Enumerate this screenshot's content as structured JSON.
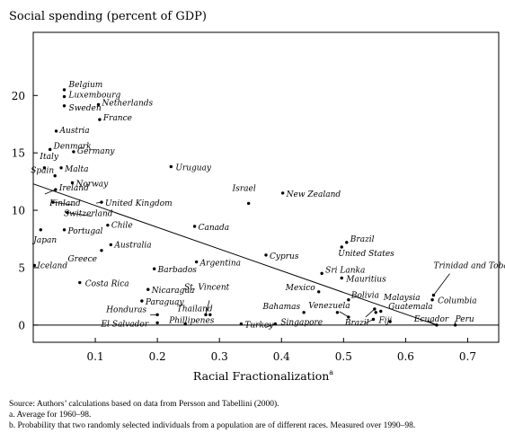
{
  "chart_data": {
    "type": "scatter",
    "title": "Social spending (percent of GDP)",
    "xlabel": "Racial Fractionalization",
    "xlabel_superscript": "a",
    "xlim": [
      0,
      0.75
    ],
    "ylim": [
      -1.5,
      25.5
    ],
    "xticks": [
      0.1,
      0.2,
      0.3,
      0.4,
      0.5,
      0.6,
      0.7
    ],
    "xtick_labels": [
      "0.1",
      "0.2",
      "0.3",
      "0.4",
      "0.5",
      "0.6",
      "0.7"
    ],
    "yticks": [
      0,
      5,
      10,
      15,
      20
    ],
    "ytick_labels": [
      "0",
      "5",
      "10",
      "15",
      "20"
    ],
    "grid": false,
    "font_style": "italic",
    "fit_line": {
      "x": [
        0,
        0.65
      ],
      "y": [
        12.3,
        0.0
      ]
    },
    "points": [
      {
        "label": "Belgium",
        "x": 0.05,
        "y": 20.5
      },
      {
        "label": "Luxembourg",
        "x": 0.05,
        "y": 19.9
      },
      {
        "label": "Sweden",
        "x": 0.05,
        "y": 19.1
      },
      {
        "label": "Netherlands",
        "x": 0.105,
        "y": 19.2
      },
      {
        "label": "France",
        "x": 0.107,
        "y": 17.9
      },
      {
        "label": "Austria",
        "x": 0.037,
        "y": 16.9
      },
      {
        "label": "Denmark",
        "x": 0.027,
        "y": 15.3
      },
      {
        "label": "Germany",
        "x": 0.065,
        "y": 15.1
      },
      {
        "label": "Italy",
        "x": 0.018,
        "y": 13.7
      },
      {
        "label": "Malta",
        "x": 0.045,
        "y": 13.7
      },
      {
        "label": "Spain",
        "x": 0.035,
        "y": 13.0
      },
      {
        "label": "Norway",
        "x": 0.063,
        "y": 12.4
      },
      {
        "label": "Ireland",
        "x": 0.036,
        "y": 11.8
      },
      {
        "label": "Finland",
        "x": 0.032,
        "y": 10.7
      },
      {
        "label": "United Kingdom",
        "x": 0.11,
        "y": 10.7
      },
      {
        "label": "Switzerland",
        "x": 0.055,
        "y": 9.8
      },
      {
        "label": "Japan",
        "x": 0.012,
        "y": 8.3
      },
      {
        "label": "Portugal",
        "x": 0.05,
        "y": 8.3
      },
      {
        "label": "Chile",
        "x": 0.12,
        "y": 8.7
      },
      {
        "label": "Australia",
        "x": 0.125,
        "y": 7.0
      },
      {
        "label": "Greece",
        "x": 0.11,
        "y": 6.5
      },
      {
        "label": "Iceland",
        "x": 0.002,
        "y": 5.2
      },
      {
        "label": "Costa Rica",
        "x": 0.075,
        "y": 3.7
      },
      {
        "label": "Uruguay",
        "x": 0.222,
        "y": 13.8
      },
      {
        "label": "Israel",
        "x": 0.347,
        "y": 10.6
      },
      {
        "label": "New Zealand",
        "x": 0.402,
        "y": 11.5
      },
      {
        "label": "Canada",
        "x": 0.26,
        "y": 8.6
      },
      {
        "label": "Argentina",
        "x": 0.263,
        "y": 5.5
      },
      {
        "label": "Barbados",
        "x": 0.195,
        "y": 4.9
      },
      {
        "label": "Cyprus",
        "x": 0.375,
        "y": 6.1
      },
      {
        "label": "Brazil",
        "x": 0.505,
        "y": 7.2
      },
      {
        "label": "United States",
        "x": 0.497,
        "y": 6.8
      },
      {
        "label": "Sri Lanka",
        "x": 0.465,
        "y": 4.5
      },
      {
        "label": "Mauritius",
        "x": 0.497,
        "y": 4.1
      },
      {
        "label": "Mexico",
        "x": 0.46,
        "y": 2.9
      },
      {
        "label": "Bolivia",
        "x": 0.508,
        "y": 2.2
      },
      {
        "label": "Malaysia",
        "x": 0.55,
        "y": 1.4
      },
      {
        "label": "Guatemala",
        "x": 0.552,
        "y": 1.1
      },
      {
        "label": "Fiji",
        "x": 0.548,
        "y": 0.5
      },
      {
        "label": "Venezuela",
        "x": 0.49,
        "y": 1.1
      },
      {
        "label": "Bahamas",
        "x": 0.436,
        "y": 1.1
      },
      {
        "label": "Brazil",
        "x": 0.508,
        "y": 0.7
      },
      {
        "label": "Singapore",
        "x": 0.39,
        "y": 0.1
      },
      {
        "label": "Turkey",
        "x": 0.335,
        "y": 0.1
      },
      {
        "label": "Thailand",
        "x": 0.285,
        "y": 0.9
      },
      {
        "label": "St. Vincent",
        "x": 0.278,
        "y": 0.9
      },
      {
        "label": "Nicaragua",
        "x": 0.185,
        "y": 3.1
      },
      {
        "label": "Paraguay",
        "x": 0.175,
        "y": 2.1
      },
      {
        "label": "Honduras",
        "x": 0.2,
        "y": 0.9
      },
      {
        "label": "El Salvador",
        "x": 0.2,
        "y": 0.2
      },
      {
        "label": "Phillipenes",
        "x": 0.245,
        "y": 0.1
      },
      {
        "label": "Trinidad and Tobago",
        "x": 0.645,
        "y": 2.6
      },
      {
        "label": "Columbia",
        "x": 0.643,
        "y": 2.2
      },
      {
        "label": "Ecuador",
        "x": 0.65,
        "y": 0.0
      },
      {
        "label": "Peru",
        "x": 0.68,
        "y": 0.0
      },
      {
        "label": "",
        "x": 0.575,
        "y": 0.3
      },
      {
        "label": "",
        "x": 0.56,
        "y": 1.2
      }
    ]
  },
  "notes": {
    "source": "Source:  Authors’ calculations based on data from Persson and Tabellini (2000).",
    "note_a": "a.  Average for 1960–98.",
    "note_b": "b.  Probability that two randomly selected individuals from a population are of different races. Measured over 1990–98."
  }
}
